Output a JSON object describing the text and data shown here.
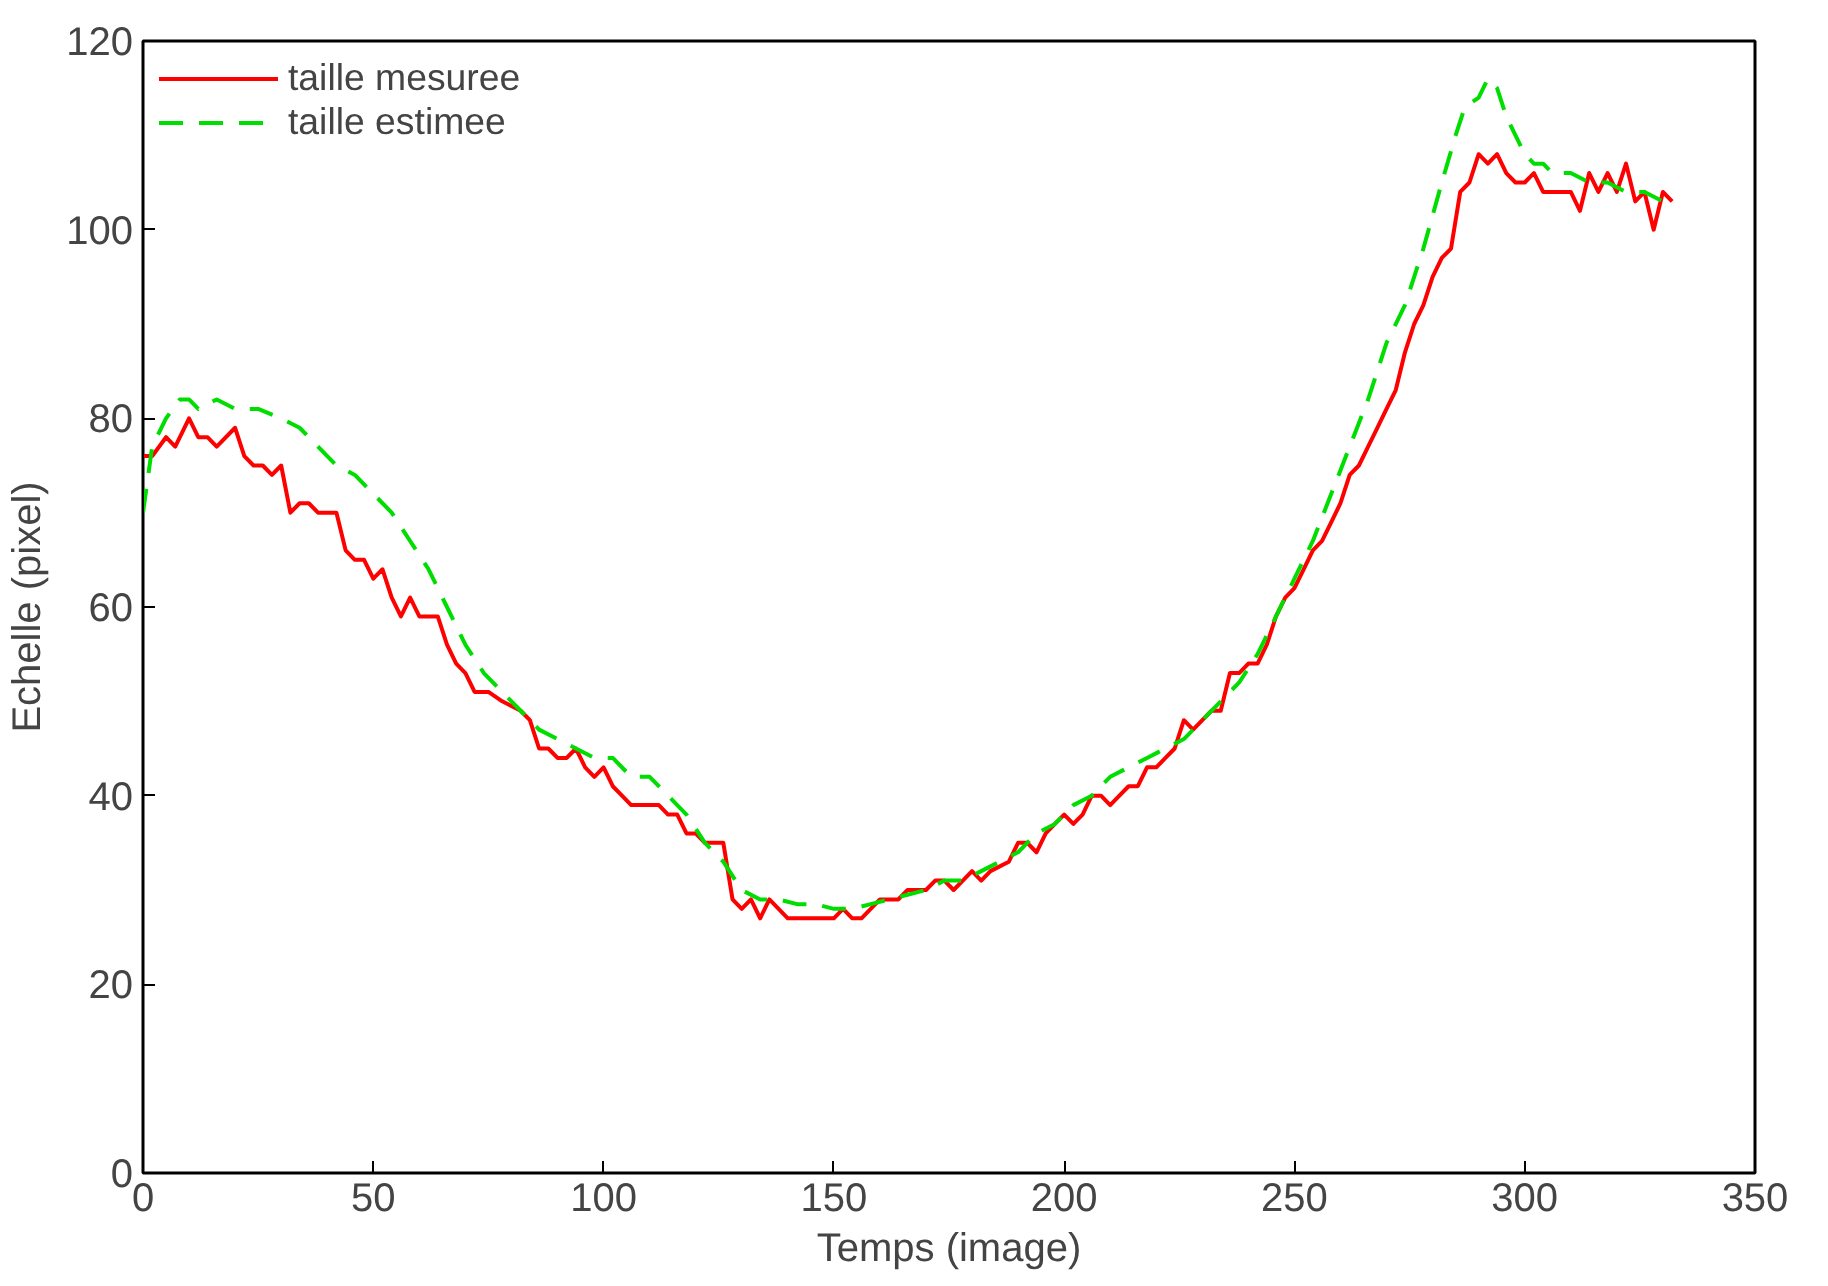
{
  "chart_data": {
    "type": "line",
    "xlabel": "Temps (image)",
    "ylabel": "Echelle (pixel)",
    "xlim": [
      0,
      350
    ],
    "ylim": [
      0,
      120
    ],
    "xticks": [
      0,
      50,
      100,
      150,
      200,
      250,
      300,
      350
    ],
    "yticks": [
      0,
      20,
      40,
      60,
      80,
      100,
      120
    ],
    "grid": false,
    "legend": "top left",
    "series": [
      {
        "name": "taille mesuree",
        "color": "#ff0000",
        "line_style": "solid",
        "x": [
          0,
          2,
          5,
          7,
          10,
          12,
          14,
          16,
          20,
          22,
          24,
          26,
          28,
          30,
          32,
          34,
          36,
          38,
          42,
          44,
          46,
          48,
          50,
          52,
          54,
          56,
          58,
          60,
          64,
          66,
          68,
          70,
          72,
          75,
          78,
          82,
          84,
          86,
          88,
          90,
          92,
          94,
          96,
          98,
          100,
          102,
          104,
          106,
          112,
          114,
          116,
          118,
          120,
          122,
          126,
          128,
          130,
          132,
          134,
          136,
          140,
          150,
          152,
          154,
          156,
          160,
          164,
          166,
          170,
          172,
          174,
          176,
          178,
          180,
          182,
          184,
          188,
          190,
          192,
          194,
          196,
          198,
          200,
          202,
          204,
          206,
          208,
          210,
          212,
          214,
          216,
          218,
          220,
          222,
          224,
          226,
          228,
          230,
          232,
          234,
          236,
          238,
          240,
          242,
          244,
          246,
          248,
          250,
          252,
          254,
          256,
          258,
          260,
          262,
          264,
          266,
          268,
          270,
          272,
          274,
          276,
          278,
          280,
          282,
          284,
          286,
          288,
          290,
          292,
          294,
          296,
          298,
          300,
          302,
          304,
          310,
          312,
          314,
          316,
          318,
          320,
          322,
          324,
          326,
          328,
          330,
          332
        ],
        "values": [
          76,
          76,
          78,
          77,
          80,
          78,
          78,
          77,
          79,
          76,
          75,
          75,
          74,
          75,
          70,
          71,
          71,
          70,
          70,
          66,
          65,
          65,
          63,
          64,
          61,
          59,
          61,
          59,
          59,
          56,
          54,
          53,
          51,
          51,
          50,
          49,
          48,
          45,
          45,
          44,
          44,
          45,
          43,
          42,
          43,
          41,
          40,
          39,
          39,
          38,
          38,
          36,
          36,
          35,
          35,
          29,
          28,
          29,
          27,
          29,
          27,
          27,
          28,
          27,
          27,
          29,
          29,
          30,
          30,
          31,
          31,
          30,
          31,
          32,
          31,
          32,
          33,
          35,
          35,
          34,
          36,
          37,
          38,
          37,
          38,
          40,
          40,
          39,
          40,
          41,
          41,
          43,
          43,
          44,
          45,
          48,
          47,
          48,
          49,
          49,
          53,
          53,
          54,
          54,
          56,
          59,
          61,
          62,
          64,
          66,
          67,
          69,
          71,
          74,
          75,
          77,
          79,
          81,
          83,
          87,
          90,
          92,
          95,
          97,
          98,
          104,
          105,
          108,
          107,
          108,
          106,
          105,
          105,
          106,
          104,
          104,
          102,
          106,
          104,
          106,
          104,
          107,
          103,
          104,
          100,
          104,
          103
        ]
      },
      {
        "name": "taille estimee",
        "color": "#00dd00",
        "line_style": "dashed",
        "x": [
          0,
          2,
          5,
          8,
          10,
          12,
          16,
          20,
          25,
          30,
          34,
          38,
          42,
          46,
          50,
          54,
          58,
          62,
          66,
          70,
          74,
          78,
          82,
          86,
          90,
          94,
          98,
          102,
          106,
          110,
          114,
          118,
          122,
          126,
          130,
          134,
          138,
          142,
          146,
          150,
          154,
          158,
          162,
          166,
          170,
          174,
          178,
          182,
          186,
          190,
          194,
          198,
          202,
          206,
          210,
          214,
          218,
          222,
          226,
          230,
          234,
          238,
          242,
          246,
          250,
          254,
          258,
          262,
          266,
          270,
          274,
          278,
          282,
          285,
          287,
          290,
          292,
          294,
          296,
          298,
          300,
          302,
          304,
          306,
          310,
          314,
          318,
          322,
          326,
          330
        ],
        "values": [
          70,
          77,
          80,
          82,
          82,
          81,
          82,
          81,
          81,
          80,
          79,
          77,
          75,
          74,
          72,
          70,
          67,
          64,
          60,
          56,
          53,
          51,
          49,
          47,
          46,
          45,
          44,
          44,
          42,
          42,
          40,
          38,
          35,
          33,
          30,
          29,
          29,
          28.5,
          28.5,
          28,
          28,
          28.5,
          29,
          29.5,
          30,
          31,
          31,
          32,
          33,
          34,
          36,
          37,
          39,
          40,
          42,
          43,
          44,
          45,
          46,
          48,
          50,
          52,
          55,
          59,
          63,
          67,
          72,
          77,
          82,
          88,
          92,
          98,
          105,
          110,
          113,
          114,
          116,
          115,
          112,
          110,
          108,
          107,
          107,
          106,
          106,
          105,
          105,
          104,
          104,
          103
        ]
      }
    ]
  }
}
